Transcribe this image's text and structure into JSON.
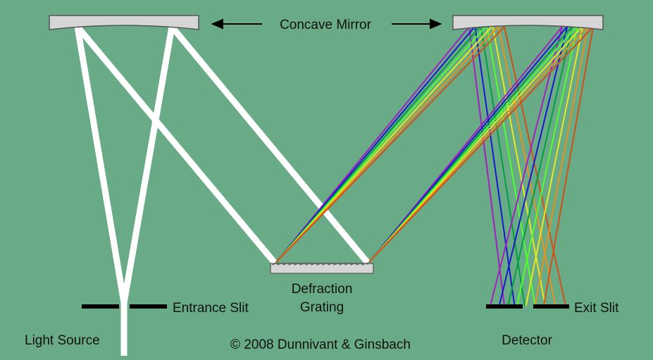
{
  "labels": {
    "concave_mirror": "Concave Mirror",
    "entrance_slit": "Entrance Slit",
    "defraction_line1": "Defraction",
    "defraction_line2": "Grating",
    "exit_slit": "Exit Slit",
    "light_source": "Light Source",
    "detector": "Detector",
    "copyright": "© 2008 Dunnivant & Ginsbach"
  },
  "colors": {
    "background": "#68ab86",
    "white_beam": "#ffffff",
    "optic_fill": "#d6d6d6",
    "optic_stroke": "#555555",
    "slit": "#000000",
    "spectrum": [
      "#a020c0",
      "#1818d0",
      "#00a040",
      "#50ff30",
      "#e8e820",
      "#e89020",
      "#d05018"
    ]
  }
}
